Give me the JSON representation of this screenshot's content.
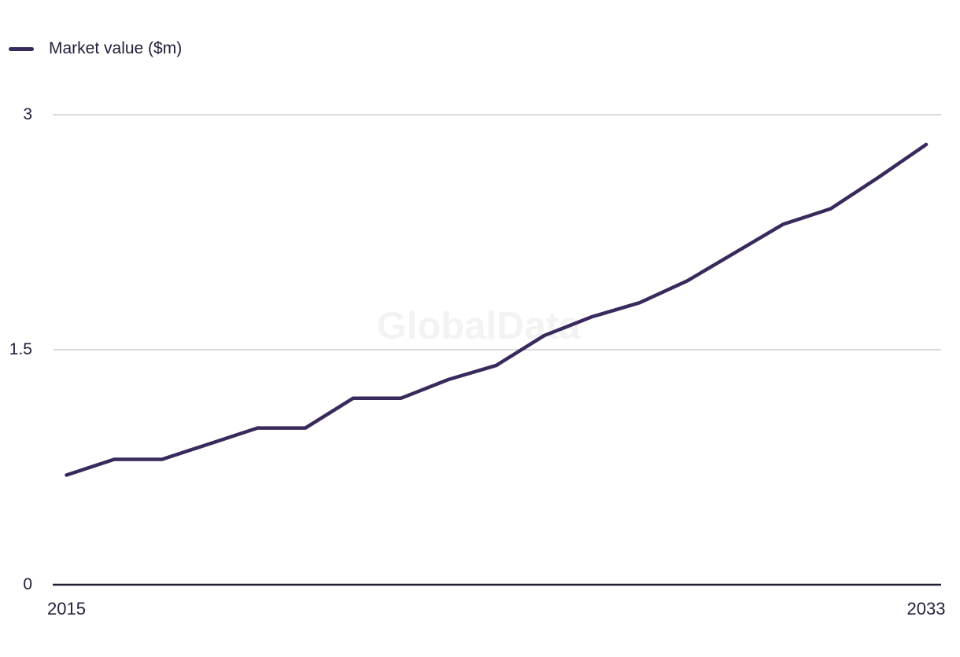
{
  "chart": {
    "legend": {
      "label": "Market value ($m)"
    },
    "watermark": "GlobalData",
    "colors": {
      "series": "#3a295c",
      "axis": "#1d1d35",
      "grid": "#dbdbdb",
      "text": "#21213b",
      "watermark": "#f3f3f3"
    }
  },
  "chart_data": {
    "type": "line",
    "title": "",
    "xlabel": "",
    "ylabel": "Market value ($m)",
    "x": [
      2015,
      2016,
      2017,
      2018,
      2019,
      2020,
      2021,
      2022,
      2023,
      2024,
      2025,
      2026,
      2027,
      2028,
      2029,
      2030,
      2031,
      2032,
      2033
    ],
    "series": [
      {
        "name": "Market value ($m)",
        "values": [
          0.7,
          0.8,
          0.8,
          0.9,
          1.0,
          1.0,
          1.19,
          1.19,
          1.31,
          1.4,
          1.59,
          1.71,
          1.8,
          1.94,
          2.12,
          2.3,
          2.4,
          2.6,
          2.81
        ]
      }
    ],
    "ylim": [
      0,
      3
    ],
    "yticks": [
      0,
      1.5,
      3
    ],
    "ytick_labels": [
      "0",
      "1.5",
      "3"
    ],
    "xticks_shown": [
      2015,
      2033
    ],
    "xtick_labels": [
      "2015",
      "2033"
    ],
    "grid": "horizontal-only",
    "legend_position": "top-left",
    "watermark": "GlobalData"
  }
}
